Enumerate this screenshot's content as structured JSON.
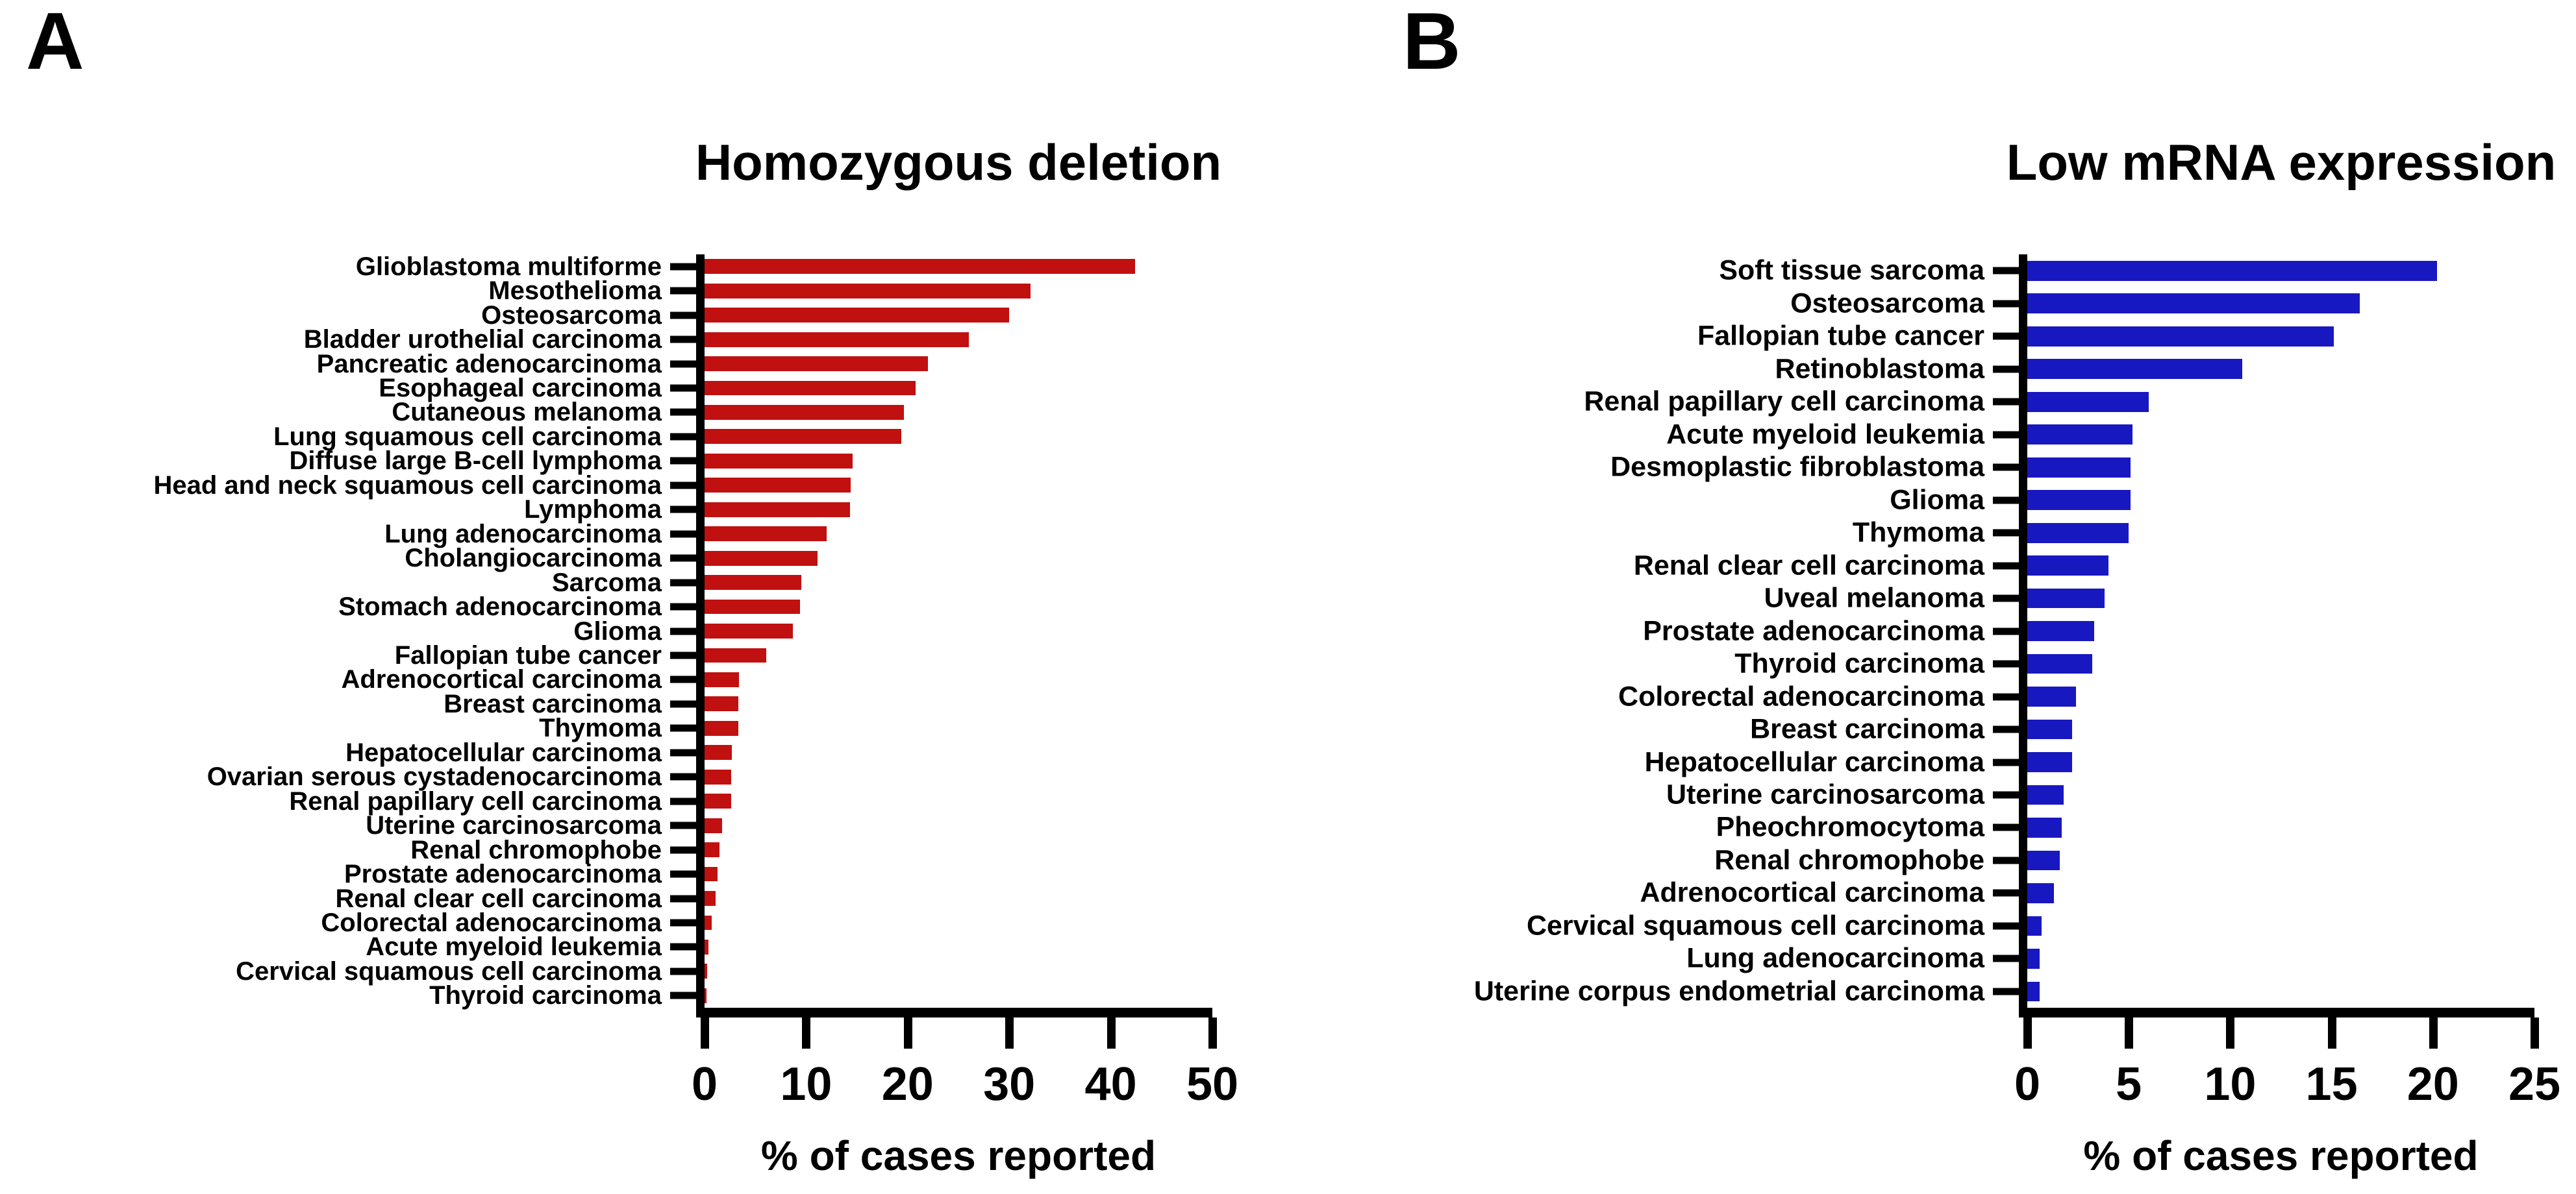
{
  "figure_type": "two-panel horizontal bar figure",
  "x_axis_label": "% of cases reported",
  "chart_data": [
    {
      "type": "bar",
      "orientation": "horizontal",
      "letter": "A",
      "title": "Homozygous deletion",
      "xlabel": "% of cases reported",
      "bar_color": "#c01010",
      "axis_color": "#000000",
      "xlim": [
        0,
        50
      ],
      "x_ticks": [
        0,
        10,
        20,
        30,
        40,
        50
      ],
      "grid": false,
      "legend": null,
      "categories": [
        "Glioblastoma multiforme",
        "Mesothelioma",
        "Osteosarcoma",
        "Bladder urothelial carcinoma",
        "Pancreatic adenocarcinoma",
        "Esophageal carcinoma",
        "Cutaneous melanoma",
        "Lung squamous cell carcinoma",
        "Diffuse large B-cell lymphoma",
        "Head and neck squamous cell carcinoma",
        "Lymphoma",
        "Lung adenocarcinoma",
        "Cholangiocarcinoma",
        "Sarcoma",
        "Stomach adenocarcinoma",
        "Glioma",
        "Fallopian tube cancer",
        "Adrenocortical carcinoma",
        "Breast carcinoma",
        "Thymoma",
        "Hepatocellular carcinoma",
        "Ovarian serous cystadenocarcinoma",
        "Renal papillary cell carcinoma",
        "Uterine carcinosarcoma",
        "Renal chromophobe",
        "Prostate adenocarcinoma",
        "Renal clear cell carcinoma",
        "Colorectal adenocarcinoma",
        "Acute myeloid leukemia",
        "Cervical squamous cell carcinoma",
        "Thyroid carcinoma"
      ],
      "values": [
        42.4,
        32.1,
        30.0,
        26.0,
        22.0,
        20.8,
        19.6,
        19.4,
        14.6,
        14.4,
        14.3,
        12.0,
        11.1,
        9.5,
        9.4,
        8.7,
        6.1,
        3.4,
        3.3,
        3.3,
        2.7,
        2.6,
        2.6,
        1.7,
        1.5,
        1.3,
        1.1,
        0.7,
        0.4,
        0.25,
        0.2
      ]
    },
    {
      "type": "bar",
      "orientation": "horizontal",
      "letter": "B",
      "title": "Low mRNA expression",
      "xlabel": "% of cases reported",
      "bar_color": "#1818c0",
      "axis_color": "#000000",
      "xlim": [
        0,
        25
      ],
      "x_ticks": [
        0,
        5,
        10,
        15,
        20,
        25
      ],
      "grid": false,
      "legend": null,
      "categories": [
        "Soft tissue sarcoma",
        "Osteosarcoma",
        "Fallopian tube cancer",
        "Retinoblastoma",
        "Renal papillary cell carcinoma",
        "Acute myeloid leukemia",
        "Desmoplastic fibroblastoma",
        "Glioma",
        "Thymoma",
        "Renal clear cell carcinoma",
        "Uveal melanoma",
        "Prostate adenocarcinoma",
        "Thyroid carcinoma",
        "Colorectal adenocarcinoma",
        "Breast carcinoma",
        "Hepatocellular carcinoma",
        "Uterine carcinosarcoma",
        "Pheochromocytoma",
        "Renal chromophobe",
        "Adrenocortical carcinoma",
        "Cervical squamous cell carcinoma",
        "Lung adenocarcinoma",
        "Uterine corpus endometrial carcinoma"
      ],
      "values": [
        20.2,
        16.4,
        15.1,
        10.6,
        6.0,
        5.2,
        5.1,
        5.1,
        5.0,
        4.0,
        3.8,
        3.3,
        3.2,
        2.4,
        2.2,
        2.2,
        1.8,
        1.7,
        1.6,
        1.3,
        0.7,
        0.6,
        0.6
      ]
    }
  ]
}
